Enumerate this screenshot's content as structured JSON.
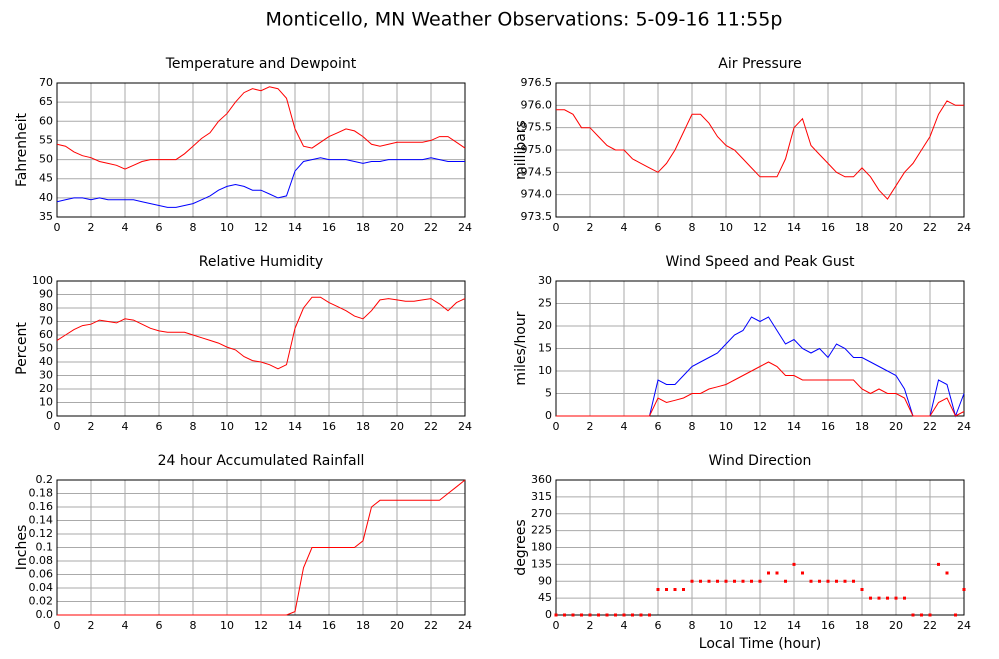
{
  "title": "Monticello, MN Weather Observations: 5-09-16 11:55p",
  "chart_data": [
    {
      "type": "line",
      "title": "Temperature and Dewpoint",
      "ylabel": "Fahrenheit",
      "grid": true,
      "x": [
        0,
        0.5,
        1,
        1.5,
        2,
        2.5,
        3,
        3.5,
        4,
        4.5,
        5,
        5.5,
        6,
        6.5,
        7,
        7.5,
        8,
        8.5,
        9,
        9.5,
        10,
        10.5,
        11,
        11.5,
        12,
        12.5,
        13,
        13.5,
        14,
        14.5,
        15,
        15.5,
        16,
        16.5,
        17,
        17.5,
        18,
        18.5,
        19,
        19.5,
        20,
        20.5,
        21,
        21.5,
        22,
        22.5,
        23,
        23.5,
        24
      ],
      "xlim": [
        0,
        24
      ],
      "xticks": [
        0,
        2,
        4,
        6,
        8,
        10,
        12,
        14,
        16,
        18,
        20,
        22,
        24
      ],
      "ylim": [
        35,
        70
      ],
      "yticks": [
        35,
        40,
        45,
        50,
        55,
        60,
        65,
        70
      ],
      "series": [
        {
          "color": "#ff0000",
          "values": [
            54,
            53.5,
            52,
            51,
            50.5,
            49.5,
            49,
            48.5,
            47.5,
            48.5,
            49.5,
            50,
            50,
            50,
            50,
            51.5,
            53.5,
            55.5,
            57,
            60,
            62,
            65,
            67.5,
            68.5,
            68,
            69,
            68.5,
            66,
            58,
            53.5,
            53,
            54.5,
            56,
            57,
            58,
            57.5,
            56,
            54,
            53.5,
            54,
            54.5,
            54.5,
            54.5,
            54.5,
            55,
            56,
            56,
            54.5,
            53
          ]
        },
        {
          "color": "#0000ff",
          "values": [
            39,
            39.5,
            40,
            40,
            39.5,
            40,
            39.5,
            39.5,
            39.5,
            39.5,
            39,
            38.5,
            38,
            37.5,
            37.5,
            38,
            38.5,
            39.5,
            40.5,
            42,
            43,
            43.5,
            43,
            42,
            42,
            41,
            40,
            40.5,
            47,
            49.5,
            50,
            50.5,
            50,
            50,
            50,
            49.5,
            49,
            49.5,
            49.5,
            50,
            50,
            50,
            50,
            50,
            50.5,
            50,
            49.5,
            49.5,
            49.5
          ]
        }
      ]
    },
    {
      "type": "line",
      "title": "Air Pressure",
      "ylabel": "millibars",
      "grid": true,
      "x": [
        0,
        0.5,
        1,
        1.5,
        2,
        2.5,
        3,
        3.5,
        4,
        4.5,
        5,
        5.5,
        6,
        6.5,
        7,
        7.5,
        8,
        8.5,
        9,
        9.5,
        10,
        10.5,
        11,
        11.5,
        12,
        12.5,
        13,
        13.5,
        14,
        14.5,
        15,
        15.5,
        16,
        16.5,
        17,
        17.5,
        18,
        18.5,
        19,
        19.5,
        20,
        20.5,
        21,
        21.5,
        22,
        22.5,
        23,
        23.5,
        24
      ],
      "xlim": [
        0,
        24
      ],
      "xticks": [
        0,
        2,
        4,
        6,
        8,
        10,
        12,
        14,
        16,
        18,
        20,
        22,
        24
      ],
      "ylim": [
        973.5,
        976.5
      ],
      "yticks": [
        973.5,
        {
          "value": 974,
          "label": "974.0"
        },
        974.5,
        {
          "value": 975,
          "label": "975.0"
        },
        975.5,
        {
          "value": 976,
          "label": "976.0"
        },
        976.5
      ],
      "series": [
        {
          "color": "#ff0000",
          "values": [
            975.9,
            975.9,
            975.8,
            975.5,
            975.5,
            975.3,
            975.1,
            975,
            975,
            974.8,
            974.7,
            974.6,
            974.5,
            974.7,
            975,
            975.4,
            975.8,
            975.8,
            975.6,
            975.3,
            975.1,
            975,
            974.8,
            974.6,
            974.4,
            974.4,
            974.4,
            974.8,
            975.5,
            975.7,
            975.1,
            974.9,
            974.7,
            974.5,
            974.4,
            974.4,
            974.6,
            974.4,
            974.1,
            973.9,
            974.2,
            974.5,
            974.7,
            975,
            975.3,
            975.8,
            976.1,
            976,
            976
          ]
        }
      ]
    },
    {
      "type": "line",
      "title": "Relative Humidity",
      "ylabel": "Percent",
      "grid": true,
      "x": [
        0,
        0.5,
        1,
        1.5,
        2,
        2.5,
        3,
        3.5,
        4,
        4.5,
        5,
        5.5,
        6,
        6.5,
        7,
        7.5,
        8,
        8.5,
        9,
        9.5,
        10,
        10.5,
        11,
        11.5,
        12,
        12.5,
        13,
        13.5,
        14,
        14.5,
        15,
        15.5,
        16,
        16.5,
        17,
        17.5,
        18,
        18.5,
        19,
        19.5,
        20,
        20.5,
        21,
        21.5,
        22,
        22.5,
        23,
        23.5,
        24
      ],
      "xlim": [
        0,
        24
      ],
      "xticks": [
        0,
        2,
        4,
        6,
        8,
        10,
        12,
        14,
        16,
        18,
        20,
        22,
        24
      ],
      "ylim": [
        0,
        100
      ],
      "yticks": [
        0,
        10,
        20,
        30,
        40,
        50,
        60,
        70,
        80,
        90,
        100
      ],
      "series": [
        {
          "color": "#ff0000",
          "values": [
            56,
            60,
            64,
            67,
            68,
            71,
            70,
            69,
            72,
            71,
            68,
            65,
            63,
            62,
            62,
            62,
            60,
            58,
            56,
            54,
            51,
            49,
            44,
            41,
            40,
            38,
            35,
            38,
            65,
            80,
            88,
            88,
            84,
            81,
            78,
            74,
            72,
            78,
            86,
            87,
            86,
            85,
            85,
            86,
            87,
            83,
            78,
            84,
            87
          ]
        }
      ]
    },
    {
      "type": "line",
      "title": "Wind Speed and Peak Gust",
      "ylabel": "miles/hour",
      "grid": true,
      "x": [
        0,
        0.5,
        1,
        1.5,
        2,
        2.5,
        3,
        3.5,
        4,
        4.5,
        5,
        5.5,
        6,
        6.5,
        7,
        7.5,
        8,
        8.5,
        9,
        9.5,
        10,
        10.5,
        11,
        11.5,
        12,
        12.5,
        13,
        13.5,
        14,
        14.5,
        15,
        15.5,
        16,
        16.5,
        17,
        17.5,
        18,
        18.5,
        19,
        19.5,
        20,
        20.5,
        21,
        21.5,
        22,
        22.5,
        23,
        23.5,
        24
      ],
      "xlim": [
        0,
        24
      ],
      "xticks": [
        0,
        2,
        4,
        6,
        8,
        10,
        12,
        14,
        16,
        18,
        20,
        22,
        24
      ],
      "ylim": [
        0,
        30
      ],
      "yticks": [
        0,
        5,
        10,
        15,
        20,
        25,
        30
      ],
      "series": [
        {
          "color": "#0000ff",
          "values": [
            0,
            0,
            0,
            0,
            0,
            0,
            0,
            0,
            0,
            0,
            0,
            0,
            8,
            7,
            7,
            9,
            11,
            12,
            13,
            14,
            16,
            18,
            19,
            22,
            21,
            22,
            19,
            16,
            17,
            15,
            14,
            15,
            13,
            16,
            15,
            13,
            13,
            12,
            11,
            10,
            9,
            6,
            0,
            0,
            0,
            8,
            7,
            0,
            5
          ]
        },
        {
          "color": "#ff0000",
          "values": [
            0,
            0,
            0,
            0,
            0,
            0,
            0,
            0,
            0,
            0,
            0,
            0,
            4,
            3,
            3.5,
            4,
            5,
            5,
            6,
            6.5,
            7,
            8,
            9,
            10,
            11,
            12,
            11,
            9,
            9,
            8,
            8,
            8,
            8,
            8,
            8,
            8,
            6,
            5,
            6,
            5,
            5,
            4,
            0,
            0,
            0,
            3,
            4,
            0,
            1
          ]
        }
      ]
    },
    {
      "type": "line",
      "title": "24 hour Accumulated Rainfall",
      "ylabel": "Inches",
      "grid": true,
      "x": [
        0,
        0.5,
        1,
        1.5,
        2,
        2.5,
        3,
        3.5,
        4,
        4.5,
        5,
        5.5,
        6,
        6.5,
        7,
        7.5,
        8,
        8.5,
        9,
        9.5,
        10,
        10.5,
        11,
        11.5,
        12,
        12.5,
        13,
        13.5,
        14,
        14.5,
        15,
        15.5,
        16,
        16.5,
        17,
        17.5,
        18,
        18.5,
        19,
        19.5,
        20,
        20.5,
        21,
        21.5,
        22,
        22.5,
        23,
        23.5,
        24
      ],
      "xlim": [
        0,
        24
      ],
      "xticks": [
        0,
        2,
        4,
        6,
        8,
        10,
        12,
        14,
        16,
        18,
        20,
        22,
        24
      ],
      "ylim": [
        0,
        0.2
      ],
      "yticks": [
        {
          "value": 0,
          "label": "0.0"
        },
        0.02,
        0.04,
        0.06,
        0.08,
        0.1,
        0.12,
        0.14,
        0.16,
        0.18,
        0.2
      ],
      "series": [
        {
          "color": "#ff0000",
          "values": [
            0,
            0,
            0,
            0,
            0,
            0,
            0,
            0,
            0,
            0,
            0,
            0,
            0,
            0,
            0,
            0,
            0,
            0,
            0,
            0,
            0,
            0,
            0,
            0,
            0,
            0,
            0,
            0,
            0.005,
            0.07,
            0.1,
            0.1,
            0.1,
            0.1,
            0.1,
            0.1,
            0.11,
            0.16,
            0.17,
            0.17,
            0.17,
            0.17,
            0.17,
            0.17,
            0.17,
            0.17,
            0.18,
            0.19,
            0.2
          ]
        }
      ]
    },
    {
      "type": "scatter",
      "title": "Wind Direction",
      "ylabel": "degrees",
      "xlabel": "Local Time (hour)",
      "grid": true,
      "x": [
        0,
        0.5,
        1,
        1.5,
        2,
        2.5,
        3,
        3.5,
        4,
        4.5,
        5,
        5.5,
        6,
        6.5,
        7,
        7.5,
        8,
        8.5,
        9,
        9.5,
        10,
        10.5,
        11,
        11.5,
        12,
        12.5,
        13,
        13.5,
        14,
        14.5,
        15,
        15.5,
        16,
        16.5,
        17,
        17.5,
        18,
        18.5,
        19,
        19.5,
        20,
        20.5,
        21,
        21.5,
        22,
        22.5,
        23,
        23.5,
        24
      ],
      "xlim": [
        0,
        24
      ],
      "xticks": [
        0,
        2,
        4,
        6,
        8,
        10,
        12,
        14,
        16,
        18,
        20,
        22,
        24
      ],
      "ylim": [
        0,
        360
      ],
      "yticks": [
        0,
        45,
        90,
        135,
        180,
        225,
        270,
        315,
        360
      ],
      "series": [
        {
          "color": "#ff0000",
          "values": [
            0,
            0,
            0,
            0,
            0,
            0,
            0,
            0,
            0,
            0,
            0,
            0,
            68,
            68,
            68,
            68,
            90,
            90,
            90,
            90,
            90,
            90,
            90,
            90,
            90,
            112,
            112,
            90,
            135,
            112,
            90,
            90,
            90,
            90,
            90,
            90,
            68,
            45,
            45,
            45,
            45,
            45,
            0,
            0,
            0,
            135,
            112,
            0,
            68
          ]
        }
      ]
    }
  ]
}
